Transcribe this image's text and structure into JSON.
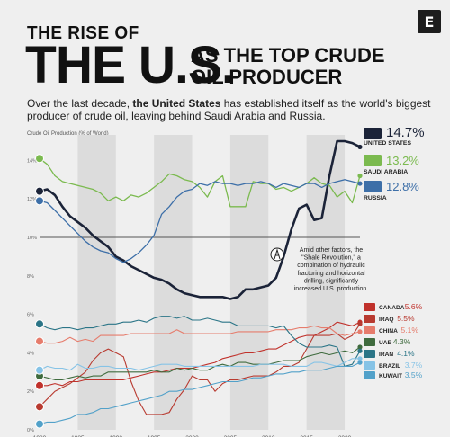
{
  "header": {
    "logo": "E",
    "title_line1": "THE RISE OF",
    "title_big": "THE U.S.",
    "title_right_line1": "AS THE TOP CRUDE",
    "title_right_line2": "OIL PRODUCER",
    "subtitle_pre": "Over the last decade, ",
    "subtitle_bold": "the United States",
    "subtitle_post": " has established itself as the world's biggest producer of crude oil, leaving behind Saudi Arabia and Russia."
  },
  "annotation": {
    "lines": [
      "Amid other factors, the",
      "\"Shale Revolution,\" a",
      "combination of hydraulic",
      "fracturing and horizontal",
      "drilling, significantly",
      "increased U.S. production."
    ]
  },
  "chart_data": {
    "type": "line",
    "title": "THE RISE OF THE U.S. AS THE TOP CRUDE OIL PRODUCER",
    "ylabel": "Crude Oil Production (% of World)",
    "ylim": [
      0,
      16
    ],
    "y_ticks": [
      "0%",
      "2%",
      "4%",
      "6%",
      "8%",
      "10%",
      "12%",
      "14%"
    ],
    "x_ticks": [
      "1980",
      "1985",
      "1990",
      "1995",
      "2000",
      "2005",
      "2010",
      "2015",
      "2020"
    ],
    "grid": "shaded alternate 5-year bands, dark reference line at 10%",
    "x": [
      1980,
      1981,
      1982,
      1983,
      1984,
      1985,
      1986,
      1987,
      1988,
      1989,
      1990,
      1991,
      1992,
      1993,
      1994,
      1995,
      1996,
      1997,
      1998,
      1999,
      2000,
      2001,
      2002,
      2003,
      2004,
      2005,
      2006,
      2007,
      2008,
      2009,
      2010,
      2011,
      2012,
      2013,
      2014,
      2015,
      2016,
      2017,
      2018,
      2019,
      2020,
      2021,
      2022
    ],
    "series": [
      {
        "name": "UNITED STATES",
        "value_label": "14.7%",
        "color": "#1b2338",
        "flag": "us",
        "values": [
          12.4,
          12.5,
          12.2,
          11.6,
          11.1,
          10.8,
          10.5,
          10.1,
          9.8,
          9.5,
          9.0,
          8.8,
          8.5,
          8.3,
          8.1,
          7.9,
          7.8,
          7.6,
          7.3,
          7.1,
          7.0,
          6.9,
          6.9,
          6.9,
          6.9,
          6.8,
          6.9,
          7.3,
          7.3,
          7.4,
          7.5,
          7.9,
          9.0,
          10.4,
          11.5,
          11.7,
          10.9,
          11.0,
          13.2,
          15.0,
          15.0,
          14.9,
          14.7
        ]
      },
      {
        "name": "SAUDI ARABIA",
        "value_label": "13.2%",
        "color": "#7bba4f",
        "flag": "sa",
        "values": [
          14.1,
          13.8,
          13.2,
          12.9,
          12.8,
          12.7,
          12.6,
          12.5,
          12.3,
          11.9,
          12.1,
          11.9,
          12.2,
          12.1,
          12.3,
          12.6,
          12.9,
          13.3,
          13.2,
          13.0,
          12.9,
          12.6,
          12.1,
          12.9,
          13.2,
          11.6,
          11.6,
          11.6,
          12.9,
          12.8,
          12.8,
          12.5,
          12.6,
          12.4,
          12.6,
          12.8,
          13.1,
          12.8,
          12.7,
          12.1,
          12.4,
          11.8,
          13.2
        ]
      },
      {
        "name": "RUSSIA",
        "value_label": "12.8%",
        "color": "#3d6fa8",
        "flag": "ru",
        "values": [
          11.9,
          11.8,
          11.4,
          11.0,
          10.6,
          10.2,
          9.8,
          9.5,
          9.3,
          9.2,
          8.9,
          8.7,
          8.9,
          9.2,
          9.6,
          10.1,
          11.2,
          11.6,
          12.1,
          12.4,
          12.5,
          12.8,
          12.7,
          12.9,
          12.8,
          12.8,
          12.7,
          12.8,
          12.8,
          12.9,
          12.8,
          12.6,
          12.8,
          12.7,
          12.6,
          12.8,
          12.8,
          12.6,
          12.8,
          12.9,
          13.0,
          12.9,
          12.8
        ]
      },
      {
        "name": "CANADA",
        "value_label": "5.6%",
        "color": "#c0312b",
        "flag": "ca",
        "values": [
          2.3,
          2.3,
          2.4,
          2.3,
          2.5,
          2.5,
          2.6,
          2.6,
          2.6,
          2.6,
          2.6,
          2.6,
          2.7,
          2.8,
          2.9,
          3.0,
          3.0,
          3.1,
          3.2,
          3.2,
          3.2,
          3.3,
          3.4,
          3.5,
          3.7,
          3.8,
          3.9,
          4.0,
          4.0,
          4.1,
          4.2,
          4.2,
          4.4,
          4.6,
          4.8,
          4.9,
          4.9,
          5.1,
          5.3,
          5.6,
          5.5,
          5.4,
          5.6
        ]
      },
      {
        "name": "IRAQ",
        "value_label": "5.5%",
        "color": "#b83a30",
        "flag": "iq",
        "values": [
          1.2,
          1.6,
          2.0,
          2.2,
          2.4,
          2.7,
          3.0,
          3.6,
          4.0,
          4.2,
          4.0,
          3.8,
          2.5,
          1.5,
          0.8,
          0.8,
          0.8,
          0.9,
          1.6,
          2.1,
          2.8,
          2.6,
          2.6,
          2.0,
          2.4,
          2.6,
          2.6,
          2.7,
          2.8,
          2.8,
          2.8,
          3.0,
          3.3,
          3.3,
          3.5,
          4.2,
          4.9,
          4.9,
          4.9,
          5.0,
          4.7,
          4.9,
          5.5
        ]
      },
      {
        "name": "CHINA",
        "value_label": "5.1%",
        "color": "#e67c6c",
        "flag": "cn",
        "values": [
          4.6,
          4.5,
          4.5,
          4.6,
          4.8,
          4.6,
          4.7,
          4.6,
          4.9,
          4.9,
          4.9,
          4.9,
          5.0,
          5.0,
          5.0,
          5.0,
          5.0,
          5.0,
          5.2,
          5.0,
          5.0,
          5.0,
          5.0,
          5.0,
          5.0,
          5.0,
          5.1,
          5.1,
          5.1,
          5.1,
          5.1,
          5.2,
          5.2,
          5.2,
          5.3,
          5.3,
          5.4,
          5.3,
          5.3,
          5.0,
          4.9,
          5.0,
          5.1
        ]
      },
      {
        "name": "UAE",
        "value_label": "4.3%",
        "color": "#3f6b3e",
        "flag": "ae",
        "values": [
          2.8,
          2.7,
          2.6,
          2.6,
          2.7,
          2.8,
          2.7,
          2.8,
          2.8,
          3.0,
          3.0,
          3.0,
          3.0,
          3.0,
          3.0,
          3.1,
          3.0,
          3.0,
          3.2,
          3.1,
          3.2,
          3.1,
          3.1,
          3.3,
          3.4,
          3.3,
          3.5,
          3.5,
          3.4,
          3.4,
          3.4,
          3.5,
          3.6,
          3.6,
          3.6,
          3.8,
          3.9,
          4.0,
          3.9,
          4.0,
          4.1,
          4.0,
          4.3
        ]
      },
      {
        "name": "IRAN",
        "value_label": "4.1%",
        "color": "#2b7587",
        "flag": "ir",
        "values": [
          5.5,
          5.3,
          5.2,
          5.3,
          5.3,
          5.2,
          5.3,
          5.3,
          5.4,
          5.5,
          5.5,
          5.6,
          5.6,
          5.7,
          5.6,
          5.8,
          5.9,
          5.9,
          5.8,
          5.9,
          5.7,
          5.7,
          5.8,
          5.7,
          5.6,
          5.6,
          5.4,
          5.4,
          5.4,
          5.4,
          5.4,
          5.3,
          5.4,
          4.9,
          4.5,
          4.3,
          4.3,
          4.3,
          4.4,
          4.3,
          3.3,
          3.4,
          4.1
        ]
      },
      {
        "name": "BRAZIL",
        "value_label": "3.7%",
        "color": "#86c3e6",
        "flag": "br",
        "values": [
          3.1,
          3.3,
          3.2,
          3.2,
          3.1,
          3.4,
          3.2,
          3.2,
          3.3,
          3.3,
          3.2,
          3.2,
          3.2,
          3.1,
          3.2,
          3.3,
          3.4,
          3.4,
          3.4,
          3.3,
          3.3,
          3.3,
          3.3,
          3.3,
          3.3,
          3.3,
          3.3,
          3.3,
          3.3,
          3.4,
          3.4,
          3.4,
          3.4,
          3.3,
          3.3,
          3.3,
          3.5,
          3.5,
          3.4,
          3.3,
          3.5,
          3.7,
          3.7
        ]
      },
      {
        "name": "KUWAIT",
        "value_label": "3.5%",
        "color": "#52a1c9",
        "flag": "kw",
        "values": [
          0.3,
          0.4,
          0.4,
          0.5,
          0.6,
          0.8,
          0.8,
          0.9,
          1.1,
          1.1,
          1.2,
          1.3,
          1.4,
          1.5,
          1.6,
          1.7,
          1.8,
          2.0,
          2.0,
          2.1,
          2.1,
          2.2,
          2.3,
          2.4,
          2.5,
          2.5,
          2.5,
          2.6,
          2.7,
          2.7,
          2.8,
          2.9,
          2.9,
          3.0,
          3.0,
          3.1,
          3.1,
          3.1,
          3.2,
          3.3,
          3.3,
          3.3,
          3.5
        ]
      }
    ]
  }
}
